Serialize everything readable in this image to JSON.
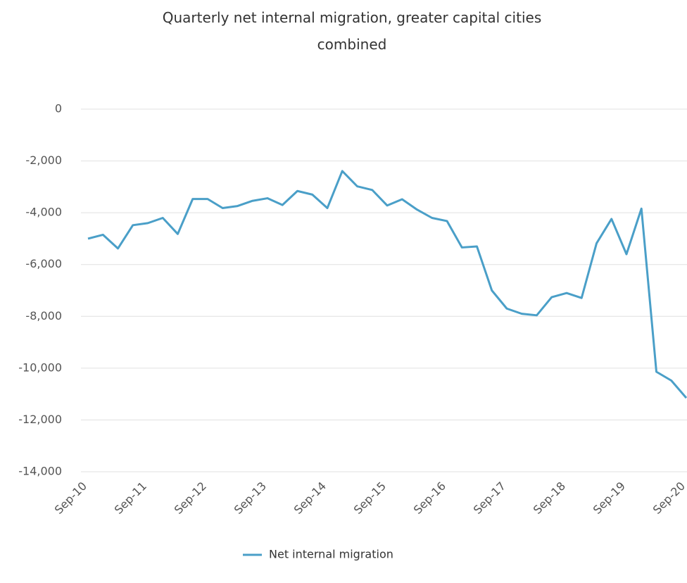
{
  "chart_data": {
    "type": "line",
    "title": "Quarterly net internal migration, greater capital cities combined",
    "categories": [
      "Sep-10",
      null,
      null,
      null,
      "Sep-11",
      null,
      null,
      null,
      "Sep-12",
      null,
      null,
      null,
      "Sep-13",
      null,
      null,
      null,
      "Sep-14",
      null,
      null,
      null,
      "Sep-15",
      null,
      null,
      null,
      "Sep-16",
      null,
      null,
      null,
      "Sep-17",
      null,
      null,
      null,
      "Sep-18",
      null,
      null,
      null,
      "Sep-19",
      null,
      null,
      null,
      "Sep-20"
    ],
    "series": [
      {
        "name": "Net internal migration",
        "color": "#4a9fc8",
        "values": [
          -5000,
          -4850,
          -5380,
          -4480,
          -4400,
          -4200,
          -4820,
          -3470,
          -3470,
          -3820,
          -3740,
          -3540,
          -3440,
          -3700,
          -3160,
          -3300,
          -3820,
          -2390,
          -2980,
          -3120,
          -3720,
          -3480,
          -3880,
          -4200,
          -4320,
          -5340,
          -5300,
          -7000,
          -7700,
          -7900,
          -7960,
          -7260,
          -7100,
          -7290,
          -5180,
          -4240,
          -5600,
          -3840,
          -10140,
          -10480,
          -11150
        ]
      }
    ],
    "ylim": [
      -14000,
      0
    ],
    "yticks": [
      {
        "value": -14000,
        "label": "-14,000"
      },
      {
        "value": -12000,
        "label": "-12,000"
      },
      {
        "value": -10000,
        "label": "-10,000"
      },
      {
        "value": -8000,
        "label": "-8,000"
      },
      {
        "value": -6000,
        "label": "-6,000"
      },
      {
        "value": -4000,
        "label": "-4,000"
      },
      {
        "value": -2000,
        "label": "-2,000"
      },
      0
    ],
    "grid": true
  }
}
